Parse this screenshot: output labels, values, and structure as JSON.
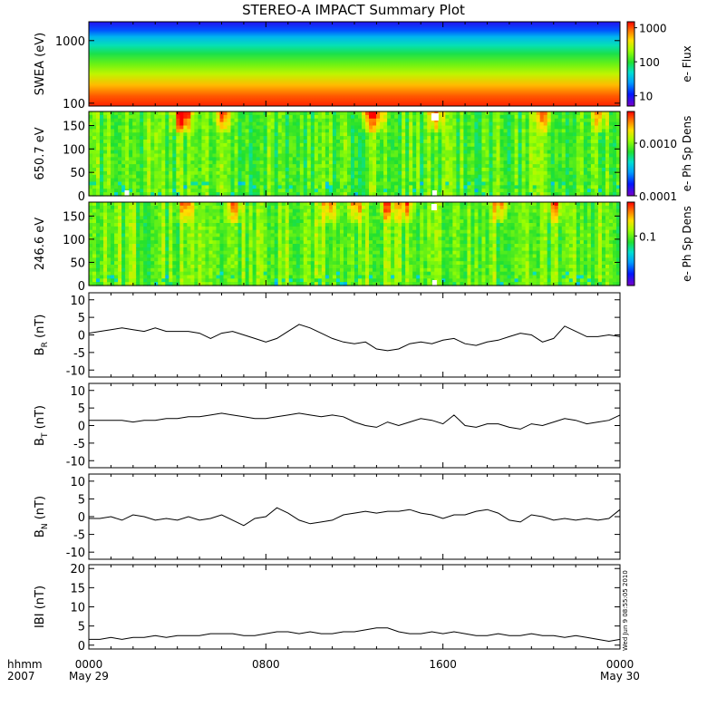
{
  "title": "STEREO-A IMPACT Summary Plot",
  "stamp": "Wed Jun  9 08:55:05 2010",
  "time_axis": {
    "corner_top": "hhmm",
    "corner_bottom": "2007",
    "ticks": [
      {
        "hour": 0,
        "top": "0000",
        "bottom": "May 29"
      },
      {
        "hour": 8,
        "top": "0800",
        "bottom": ""
      },
      {
        "hour": 16,
        "top": "1600",
        "bottom": ""
      },
      {
        "hour": 24,
        "top": "0000",
        "bottom": "May 30"
      }
    ],
    "range_hours": [
      0,
      24
    ]
  },
  "chart_data": [
    {
      "type": "heatmap",
      "name": "swea",
      "ylabel": "SWEA (eV)",
      "yscale": "log",
      "ylim": [
        90,
        2000
      ],
      "yticks": [
        {
          "value": 1000,
          "label": "1000"
        },
        {
          "value": 100,
          "label": "100"
        }
      ],
      "colorbar": {
        "label": "e- Flux",
        "scale": "log",
        "range": [
          5,
          1500
        ],
        "ticks": [
          {
            "value": 1000,
            "label": "1000"
          },
          {
            "value": 100,
            "label": "100"
          },
          {
            "value": 10,
            "label": "10"
          }
        ]
      },
      "description_profile": {
        "low_energy_level": 0.95,
        "high_energy_level": 0.05
      }
    },
    {
      "type": "heatmap",
      "name": "pad650",
      "ylabel": "650.7 eV",
      "ylim": [
        0,
        180
      ],
      "yticks": [
        {
          "value": 150,
          "label": "150"
        },
        {
          "value": 100,
          "label": "100"
        },
        {
          "value": 50,
          "label": "50"
        },
        {
          "value": 0,
          "label": "0"
        }
      ],
      "colorbar": {
        "label": "e- Ph Sp Dens",
        "scale": "log",
        "range": [
          0.0001,
          0.004
        ],
        "ticks": [
          {
            "value": 0.001,
            "label": "0.0010"
          },
          {
            "value": 0.0001,
            "label": "0.0001"
          }
        ]
      },
      "hot_spots_hours": [
        4.0,
        4.3,
        6.0,
        12.5,
        13.0,
        15.6,
        20.5,
        23.0
      ],
      "data_gaps_hours": [
        1.7,
        15.6
      ]
    },
    {
      "type": "heatmap",
      "name": "pad246",
      "ylabel": "246.6 eV",
      "ylim": [
        0,
        180
      ],
      "yticks": [
        {
          "value": 150,
          "label": "150"
        },
        {
          "value": 100,
          "label": "100"
        },
        {
          "value": 50,
          "label": "50"
        },
        {
          "value": 0,
          "label": "0"
        }
      ],
      "colorbar": {
        "label": "e- Ph Sp Dens",
        "scale": "log",
        "range": [
          0.02,
          0.3
        ],
        "ticks": [
          {
            "value": 0.1,
            "label": "0.1"
          }
        ]
      },
      "hot_spots_hours": [
        4.3,
        6.5,
        10.8,
        12.0,
        13.4,
        14.2,
        18.5,
        21.0
      ],
      "data_gaps_hours": [
        15.6
      ]
    },
    {
      "type": "line",
      "name": "br",
      "ylabel": "B",
      "ylabel_sub": "R",
      "ylabel_unit": " (nT)",
      "ylim": [
        -12,
        12
      ],
      "yticks": [
        {
          "value": 10,
          "label": "10"
        },
        {
          "value": 5,
          "label": "5"
        },
        {
          "value": 0,
          "label": "0"
        },
        {
          "value": -5,
          "label": "-5"
        },
        {
          "value": -10,
          "label": "-10"
        }
      ],
      "x": [
        0,
        0.5,
        1,
        1.5,
        2,
        2.5,
        3,
        3.5,
        4,
        4.5,
        5,
        5.5,
        6,
        6.5,
        7,
        7.5,
        8,
        8.5,
        9,
        9.5,
        10,
        10.5,
        11,
        11.5,
        12,
        12.5,
        13,
        13.5,
        14,
        14.5,
        15,
        15.5,
        16,
        16.5,
        17,
        17.5,
        18,
        18.5,
        19,
        19.5,
        20,
        20.5,
        21,
        21.5,
        22,
        22.5,
        23,
        23.5,
        24
      ],
      "y": [
        0.5,
        1.0,
        1.5,
        2.0,
        1.5,
        1.0,
        2.0,
        1.0,
        1.0,
        1.0,
        0.5,
        -1.0,
        0.5,
        1.0,
        0.0,
        -1.0,
        -2.0,
        -1.0,
        1.0,
        3.0,
        2.0,
        0.5,
        -1.0,
        -2.0,
        -2.5,
        -2.0,
        -4.0,
        -4.5,
        -4.0,
        -2.5,
        -2.0,
        -2.5,
        -1.5,
        -1.0,
        -2.5,
        -3.0,
        -2.0,
        -1.5,
        -0.5,
        0.5,
        0.0,
        -2.0,
        -1.0,
        2.5,
        1.0,
        -0.5,
        -0.5,
        0.0,
        -0.5
      ]
    },
    {
      "type": "line",
      "name": "bt",
      "ylabel": "B",
      "ylabel_sub": "T",
      "ylabel_unit": " (nT)",
      "ylim": [
        -12,
        12
      ],
      "yticks": [
        {
          "value": 10,
          "label": "10"
        },
        {
          "value": 5,
          "label": "5"
        },
        {
          "value": 0,
          "label": "0"
        },
        {
          "value": -5,
          "label": "-5"
        },
        {
          "value": -10,
          "label": "-10"
        }
      ],
      "x": [
        0,
        0.5,
        1,
        1.5,
        2,
        2.5,
        3,
        3.5,
        4,
        4.5,
        5,
        5.5,
        6,
        6.5,
        7,
        7.5,
        8,
        8.5,
        9,
        9.5,
        10,
        10.5,
        11,
        11.5,
        12,
        12.5,
        13,
        13.5,
        14,
        14.5,
        15,
        15.5,
        16,
        16.5,
        17,
        17.5,
        18,
        18.5,
        19,
        19.5,
        20,
        20.5,
        21,
        21.5,
        22,
        22.5,
        23,
        23.5,
        24
      ],
      "y": [
        1.5,
        1.5,
        1.5,
        1.5,
        1.0,
        1.5,
        1.5,
        2.0,
        2.0,
        2.5,
        2.5,
        3.0,
        3.5,
        3.0,
        2.5,
        2.0,
        2.0,
        2.5,
        3.0,
        3.5,
        3.0,
        2.5,
        3.0,
        2.5,
        1.0,
        0.0,
        -0.5,
        1.0,
        0.0,
        1.0,
        2.0,
        1.5,
        0.5,
        3.0,
        0.0,
        -0.5,
        0.5,
        0.5,
        -0.5,
        -1.0,
        0.5,
        0.0,
        1.0,
        2.0,
        1.5,
        0.5,
        1.0,
        1.5,
        3.0
      ]
    },
    {
      "type": "line",
      "name": "bn",
      "ylabel": "B",
      "ylabel_sub": "N",
      "ylabel_unit": " (nT)",
      "ylim": [
        -12,
        12
      ],
      "yticks": [
        {
          "value": 10,
          "label": "10"
        },
        {
          "value": 5,
          "label": "5"
        },
        {
          "value": 0,
          "label": "0"
        },
        {
          "value": -5,
          "label": "-5"
        },
        {
          "value": -10,
          "label": "-10"
        }
      ],
      "x": [
        0,
        0.5,
        1,
        1.5,
        2,
        2.5,
        3,
        3.5,
        4,
        4.5,
        5,
        5.5,
        6,
        6.5,
        7,
        7.5,
        8,
        8.5,
        9,
        9.5,
        10,
        10.5,
        11,
        11.5,
        12,
        12.5,
        13,
        13.5,
        14,
        14.5,
        15,
        15.5,
        16,
        16.5,
        17,
        17.5,
        18,
        18.5,
        19,
        19.5,
        20,
        20.5,
        21,
        21.5,
        22,
        22.5,
        23,
        23.5,
        24
      ],
      "y": [
        -0.5,
        -0.5,
        0.0,
        -1.0,
        0.5,
        0.0,
        -1.0,
        -0.5,
        -1.0,
        0.0,
        -1.0,
        -0.5,
        0.5,
        -1.0,
        -2.5,
        -0.5,
        0.0,
        2.5,
        1.0,
        -1.0,
        -2.0,
        -1.5,
        -1.0,
        0.5,
        1.0,
        1.5,
        1.0,
        1.5,
        1.5,
        2.0,
        1.0,
        0.5,
        -0.5,
        0.5,
        0.5,
        1.5,
        2.0,
        1.0,
        -1.0,
        -1.5,
        0.5,
        0.0,
        -1.0,
        -0.5,
        -1.0,
        -0.5,
        -1.0,
        -0.5,
        2.0
      ]
    },
    {
      "type": "line",
      "name": "bmag",
      "ylabel": "IBI",
      "ylabel_sub": "",
      "ylabel_unit": " (nT)",
      "ylim": [
        -1,
        21
      ],
      "yticks": [
        {
          "value": 20,
          "label": "20"
        },
        {
          "value": 15,
          "label": "15"
        },
        {
          "value": 10,
          "label": "10"
        },
        {
          "value": 5,
          "label": "5"
        },
        {
          "value": 0,
          "label": "0"
        }
      ],
      "x": [
        0,
        0.5,
        1,
        1.5,
        2,
        2.5,
        3,
        3.5,
        4,
        4.5,
        5,
        5.5,
        6,
        6.5,
        7,
        7.5,
        8,
        8.5,
        9,
        9.5,
        10,
        10.5,
        11,
        11.5,
        12,
        12.5,
        13,
        13.5,
        14,
        14.5,
        15,
        15.5,
        16,
        16.5,
        17,
        17.5,
        18,
        18.5,
        19,
        19.5,
        20,
        20.5,
        21,
        21.5,
        22,
        22.5,
        23,
        23.5,
        24
      ],
      "y": [
        1.5,
        1.5,
        2.0,
        1.5,
        2.0,
        2.0,
        2.5,
        2.0,
        2.5,
        2.5,
        2.5,
        3.0,
        3.0,
        3.0,
        2.5,
        2.5,
        3.0,
        3.5,
        3.5,
        3.0,
        3.5,
        3.0,
        3.0,
        3.5,
        3.5,
        4.0,
        4.5,
        4.5,
        3.5,
        3.0,
        3.0,
        3.5,
        3.0,
        3.5,
        3.0,
        2.5,
        2.5,
        3.0,
        2.5,
        2.5,
        3.0,
        2.5,
        2.5,
        2.0,
        2.5,
        2.0,
        1.5,
        1.0,
        1.5
      ]
    }
  ]
}
